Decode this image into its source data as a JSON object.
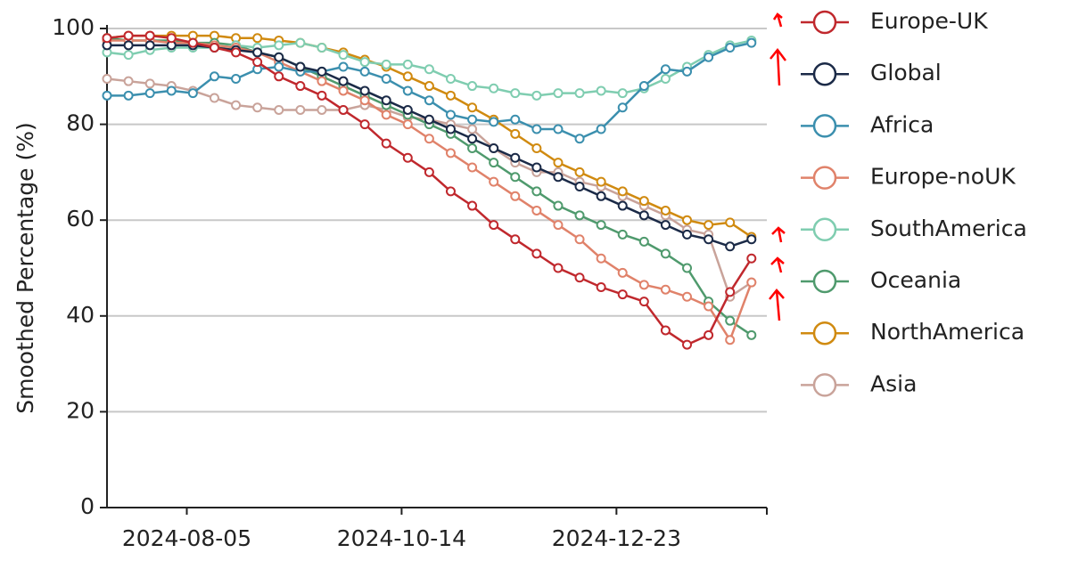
{
  "chart_data": {
    "type": "line",
    "y_label": "Smoothed Percentage (%)",
    "x": [
      "2024-07-10",
      "2024-07-17",
      "2024-07-24",
      "2024-07-31",
      "2024-08-07",
      "2024-08-14",
      "2024-08-21",
      "2024-08-28",
      "2024-09-04",
      "2024-09-11",
      "2024-09-18",
      "2024-09-25",
      "2024-10-02",
      "2024-10-09",
      "2024-10-16",
      "2024-10-23",
      "2024-10-30",
      "2024-11-06",
      "2024-11-13",
      "2024-11-20",
      "2024-11-27",
      "2024-12-04",
      "2024-12-11",
      "2024-12-18",
      "2024-12-25",
      "2025-01-01",
      "2025-01-08",
      "2025-01-15",
      "2025-01-22",
      "2025-01-29",
      "2025-02-05"
    ],
    "xlim": [
      "2024-07-10",
      "2025-02-10"
    ],
    "xticks": [
      "2024-08-05",
      "2024-10-14",
      "2024-12-23"
    ],
    "ylim": [
      0,
      100
    ],
    "yticks": [
      0,
      20,
      40,
      60,
      80,
      100
    ],
    "grid": true,
    "legend": "right",
    "series": [
      {
        "name": "Europe-UK",
        "color": "#c0282d",
        "values": [
          98,
          98.5,
          98.5,
          98,
          97,
          96,
          95,
          93,
          90,
          88,
          86,
          83,
          80,
          76,
          73,
          70,
          66,
          63,
          59,
          56,
          53,
          50,
          48,
          46,
          44.5,
          43,
          37,
          34,
          36,
          45,
          52
        ]
      },
      {
        "name": "Global",
        "color": "#1b2a47",
        "values": [
          96.5,
          96.5,
          96.5,
          96.5,
          96.5,
          96,
          95.5,
          95,
          94,
          92,
          91,
          89,
          87,
          85,
          83,
          81,
          79,
          77,
          75,
          73,
          71,
          69,
          67,
          65,
          63,
          61,
          59,
          57,
          56,
          54.5,
          56
        ]
      },
      {
        "name": "Africa",
        "color": "#3b8fae",
        "values": [
          86,
          86,
          86.5,
          87,
          86.5,
          90,
          89.5,
          91.5,
          92,
          91,
          91,
          92,
          91,
          89.5,
          87,
          85,
          82,
          81,
          80.5,
          81,
          79,
          79,
          77,
          79,
          83.5,
          88,
          91.5,
          91,
          94,
          96,
          97
        ]
      },
      {
        "name": "Europe-noUK",
        "color": "#e0826a",
        "values": [
          97.5,
          97.5,
          97.5,
          97,
          97,
          96.5,
          96,
          95,
          93,
          91,
          89,
          87,
          85,
          82,
          80,
          77,
          74,
          71,
          68,
          65,
          62,
          59,
          56,
          52,
          49,
          46.5,
          45.5,
          44,
          42,
          35,
          47
        ]
      },
      {
        "name": "SouthAmerica",
        "color": "#7fcdb0",
        "values": [
          95,
          94.5,
          95.5,
          96,
          96,
          96,
          96.5,
          96,
          96.5,
          97,
          96,
          94.5,
          93,
          92.5,
          92.5,
          91.5,
          89.5,
          88,
          87.5,
          86.5,
          86,
          86.5,
          86.5,
          87,
          86.5,
          87.5,
          89.5,
          92,
          94.5,
          96.5,
          97.5
        ]
      },
      {
        "name": "Oceania",
        "color": "#4f9a6d",
        "values": [
          98,
          97.5,
          97.5,
          97.5,
          97,
          97,
          96.5,
          95,
          94,
          92,
          90,
          88,
          86,
          84,
          82,
          80,
          78,
          75,
          72,
          69,
          66,
          63,
          61,
          59,
          57,
          55.5,
          53,
          50,
          43,
          39,
          36
        ]
      },
      {
        "name": "NorthAmerica",
        "color": "#d08a10",
        "values": [
          98,
          98.5,
          98.5,
          98.5,
          98.5,
          98.5,
          98,
          98,
          97.5,
          97,
          96,
          95,
          93.5,
          92,
          90,
          88,
          86,
          83.5,
          81,
          78,
          75,
          72,
          70,
          68,
          66,
          64,
          62,
          60,
          59,
          59.5,
          56.5
        ]
      },
      {
        "name": "Asia",
        "color": "#c9a39a",
        "values": [
          89.5,
          89,
          88.5,
          88,
          87,
          85.5,
          84,
          83.5,
          83,
          83,
          83,
          83,
          84,
          83,
          81.5,
          81,
          80,
          79,
          75,
          72,
          70,
          70,
          68,
          67,
          65,
          63,
          61,
          58,
          57,
          44,
          47
        ]
      }
    ]
  }
}
